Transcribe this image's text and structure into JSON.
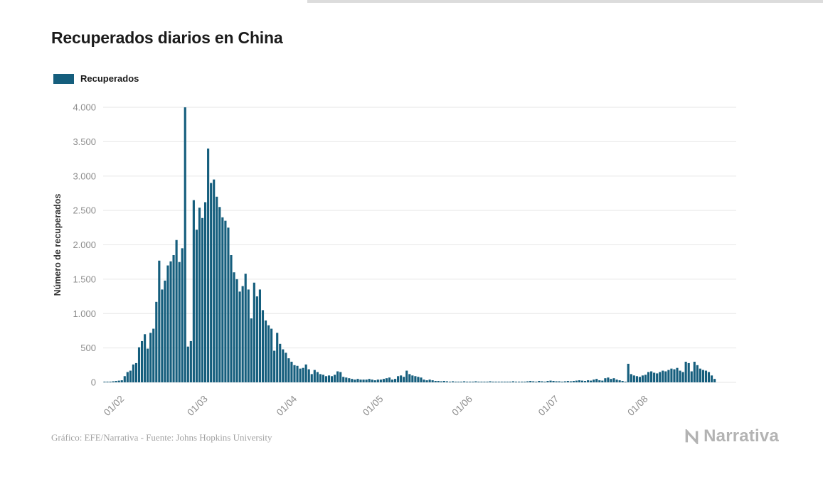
{
  "page": {
    "title": "Recuperados diarios en China"
  },
  "legend": {
    "label": "Recuperados"
  },
  "footer": {
    "credit": "Gráfico: EFE/Narrativa - Fuente: Johns Hopkins University",
    "brand": "Narrativa"
  },
  "colors": {
    "bar": "#155e7d",
    "grid": "#e6e6e6",
    "axis_text": "#8c8c8c",
    "axis_title_text": "#333333",
    "title_text": "#1b1b1b",
    "footer_text": "#a3a3a3",
    "brand_text": "#b3b3b3"
  },
  "icons": {
    "brand_icon": "narrativa-n-icon"
  },
  "chart_data": {
    "type": "bar",
    "title": "Recuperados diarios en China",
    "xlabel": "",
    "ylabel": "Número de recuperados",
    "legend": [
      "Recuperados"
    ],
    "legend_position": "top-left",
    "grid": "horizontal",
    "ylim": [
      0,
      4000
    ],
    "x_range_days": 220,
    "yticks": [
      {
        "label": "0",
        "value": 0
      },
      {
        "label": "500",
        "value": 500
      },
      {
        "label": "1.000",
        "value": 1000
      },
      {
        "label": "1.500",
        "value": 1500
      },
      {
        "label": "2.000",
        "value": 2000
      },
      {
        "label": "2.500",
        "value": 2500
      },
      {
        "label": "3.000",
        "value": 3000
      },
      {
        "label": "3.500",
        "value": 3500
      },
      {
        "label": "4.000",
        "value": 4000
      }
    ],
    "xticks": [
      {
        "label": "01/02",
        "index": 7
      },
      {
        "label": "01/03",
        "index": 36
      },
      {
        "label": "01/04",
        "index": 67
      },
      {
        "label": "01/05",
        "index": 97
      },
      {
        "label": "01/06",
        "index": 128
      },
      {
        "label": "01/07",
        "index": 158
      },
      {
        "label": "01/08",
        "index": 189
      }
    ],
    "values": [
      5,
      10,
      10,
      15,
      20,
      25,
      30,
      90,
      150,
      170,
      260,
      280,
      510,
      600,
      700,
      490,
      720,
      780,
      1170,
      1770,
      1350,
      1480,
      1700,
      1760,
      1850,
      2070,
      1750,
      1950,
      4000,
      520,
      600,
      2650,
      2220,
      2540,
      2390,
      2620,
      3400,
      2900,
      2950,
      2700,
      2550,
      2400,
      2350,
      2250,
      1850,
      1600,
      1500,
      1320,
      1400,
      1580,
      1350,
      930,
      1450,
      1250,
      1350,
      1050,
      900,
      830,
      780,
      460,
      720,
      560,
      480,
      430,
      350,
      300,
      250,
      240,
      200,
      210,
      260,
      190,
      120,
      180,
      150,
      120,
      110,
      90,
      100,
      90,
      110,
      160,
      150,
      80,
      70,
      60,
      50,
      40,
      50,
      40,
      40,
      40,
      50,
      40,
      30,
      40,
      40,
      50,
      60,
      70,
      40,
      50,
      90,
      100,
      80,
      170,
      120,
      100,
      90,
      80,
      70,
      40,
      30,
      40,
      30,
      20,
      20,
      15,
      20,
      15,
      10,
      15,
      10,
      10,
      10,
      15,
      10,
      10,
      10,
      15,
      10,
      5,
      10,
      10,
      15,
      10,
      5,
      10,
      5,
      10,
      5,
      10,
      15,
      10,
      10,
      5,
      10,
      15,
      20,
      15,
      10,
      20,
      15,
      10,
      20,
      25,
      20,
      15,
      15,
      10,
      15,
      20,
      15,
      20,
      25,
      30,
      25,
      20,
      30,
      25,
      40,
      50,
      30,
      25,
      60,
      70,
      50,
      60,
      40,
      30,
      20,
      10,
      270,
      120,
      100,
      90,
      80,
      100,
      110,
      150,
      160,
      140,
      130,
      150,
      170,
      160,
      180,
      200,
      190,
      210,
      170,
      150,
      300,
      280,
      160,
      300,
      250,
      200,
      180,
      170,
      150,
      100,
      50,
      0,
      0,
      0,
      0,
      0,
      0,
      0
    ]
  }
}
